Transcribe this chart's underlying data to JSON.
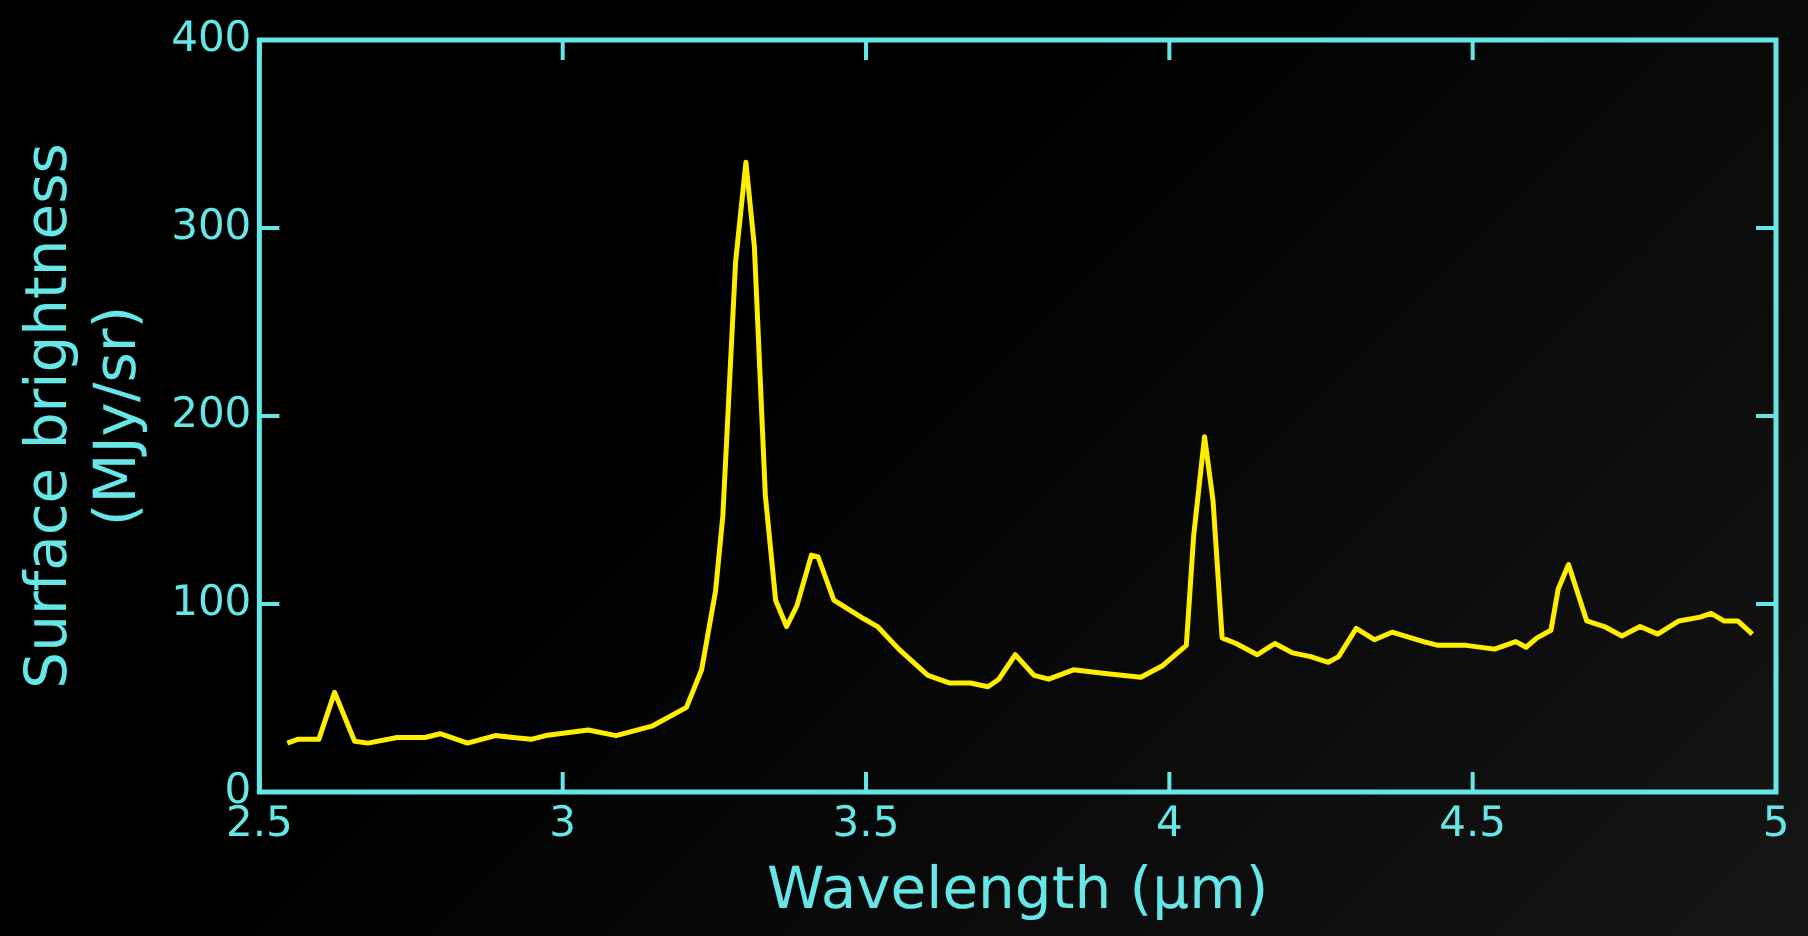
{
  "chart_data": {
    "type": "line",
    "xlabel": "Wavelength (μm)",
    "ylabel": "Surface brightness\n(MJy/sr)",
    "xlim": [
      2.5,
      5
    ],
    "xticks": [
      2.5,
      3,
      3.5,
      4,
      4.5,
      5
    ],
    "ylim": [
      0,
      400
    ],
    "yticks": [
      0,
      100,
      200,
      300,
      400
    ],
    "series": [
      {
        "color": "#ffee00",
        "x": [
          2.546,
          2.563,
          2.598,
          2.624,
          2.657,
          2.679,
          2.727,
          2.773,
          2.798,
          2.843,
          2.889,
          2.948,
          2.972,
          3.042,
          3.088,
          3.147,
          3.204,
          3.229,
          3.252,
          3.264,
          3.285,
          3.302,
          3.316,
          3.334,
          3.351,
          3.369,
          3.386,
          3.41,
          3.421,
          3.447,
          3.497,
          3.519,
          3.554,
          3.602,
          3.637,
          3.672,
          3.701,
          3.719,
          3.746,
          3.777,
          3.801,
          3.842,
          3.894,
          3.953,
          3.988,
          4.028,
          4.04,
          4.058,
          4.072,
          4.087,
          4.11,
          4.145,
          4.174,
          4.203,
          4.233,
          4.262,
          4.279,
          4.308,
          4.338,
          4.367,
          4.419,
          4.443,
          4.489,
          4.536,
          4.571,
          4.588,
          4.606,
          4.629,
          4.641,
          4.658,
          4.688,
          4.717,
          4.746,
          4.776,
          4.805,
          4.84,
          4.875,
          4.893,
          4.914,
          4.937,
          4.961
        ],
        "values": [
          26,
          28,
          28,
          53,
          27,
          26,
          29,
          29,
          31,
          26,
          30,
          28,
          30,
          33,
          30,
          35,
          45,
          65,
          107,
          147,
          282,
          335,
          290,
          158,
          102,
          88,
          99,
          126,
          125,
          102,
          92,
          88,
          76,
          62,
          58,
          58,
          56,
          60,
          73,
          62,
          60,
          65,
          63,
          61,
          67,
          78,
          136,
          189,
          155,
          82,
          79,
          73,
          79,
          74,
          72,
          69,
          72,
          87,
          81,
          85,
          80,
          78,
          78,
          76,
          80,
          77,
          82,
          86,
          108,
          121,
          91,
          88,
          83,
          88,
          84,
          91,
          93,
          95,
          91,
          91,
          84
        ]
      }
    ]
  }
}
